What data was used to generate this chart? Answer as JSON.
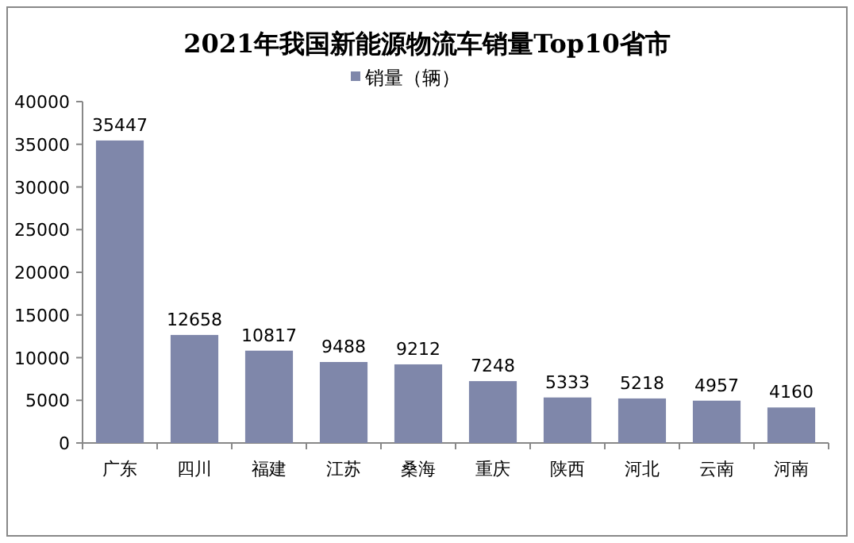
{
  "chart_data": {
    "type": "bar",
    "title": "2021年我国新能源物流车销量Top10省市",
    "categories": [
      "广东",
      "四川",
      "福建",
      "江苏",
      "桑海",
      "重庆",
      "陕西",
      "河北",
      "云南",
      "河南"
    ],
    "series": [
      {
        "name": "销量（辆）",
        "color": "#7f87aa",
        "values": [
          35447,
          12658,
          10817,
          9488,
          9212,
          7248,
          5333,
          5218,
          4957,
          4160
        ]
      }
    ],
    "ylim": [
      0,
      40000
    ],
    "yticks": [
      0,
      5000,
      10000,
      15000,
      20000,
      25000,
      30000,
      35000,
      40000
    ],
    "data_labels": true,
    "legend": "top",
    "grid": false
  }
}
